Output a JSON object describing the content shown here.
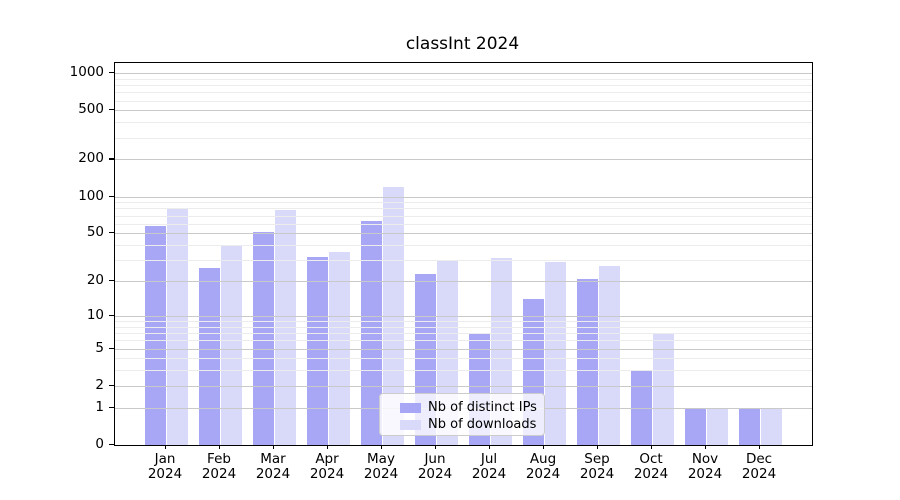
{
  "chart_data": {
    "type": "bar",
    "title": "classInt 2024",
    "x_year": "2024",
    "categories": [
      "Jan",
      "Feb",
      "Mar",
      "Apr",
      "May",
      "Jun",
      "Jul",
      "Aug",
      "Sep",
      "Oct",
      "Nov",
      "Dec"
    ],
    "series": [
      {
        "name": "Nb of distinct IPs",
        "color": "#a7a7f5",
        "values": [
          57,
          26,
          51,
          32,
          63,
          23,
          7,
          14,
          21,
          3,
          1,
          1
        ]
      },
      {
        "name": "Nb of downloads",
        "color": "#d9d9f9",
        "values": [
          81,
          40,
          77,
          35,
          120,
          30,
          31,
          29,
          27,
          7,
          1,
          1
        ]
      }
    ],
    "yticks": [
      0,
      1,
      2,
      5,
      10,
      20,
      50,
      100,
      200,
      500,
      1000
    ],
    "minor_yticks": [
      3,
      4,
      6,
      7,
      8,
      9,
      30,
      40,
      60,
      70,
      80,
      90,
      300,
      400,
      600,
      700,
      800,
      900
    ],
    "yscale": "log1p",
    "ylim": [
      0,
      1200
    ],
    "grid": "on",
    "legend_position": "lower-center",
    "colors": {
      "major_grid": "#c9c9c9",
      "minor_grid": "#ececec",
      "axis": "#000000",
      "background": "#ffffff"
    }
  }
}
